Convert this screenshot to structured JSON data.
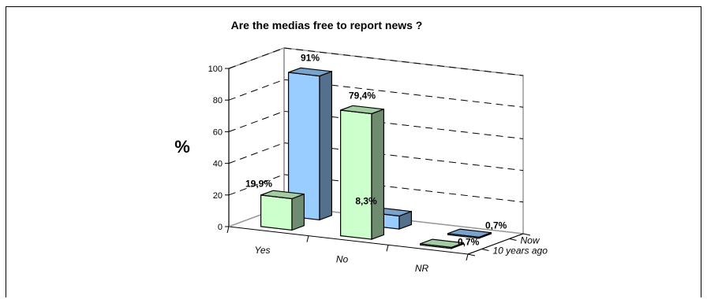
{
  "chart_data": {
    "type": "bar",
    "title": "Are the medias free to report news ?",
    "ylabel": "%",
    "xlabel": "",
    "ylim": [
      0,
      100
    ],
    "yticks": [
      "0",
      "20",
      "40",
      "60",
      "80",
      "100"
    ],
    "categories": [
      "Yes",
      "No",
      "NR"
    ],
    "series": [
      {
        "name": "10 years ago",
        "values": [
          19.9,
          79.4,
          0.7
        ],
        "labels": [
          "19,9%",
          "79,4%",
          "0,7%"
        ],
        "color": "#ccffcc"
      },
      {
        "name": "Now",
        "values": [
          91,
          8.3,
          0.7
        ],
        "labels": [
          "91%",
          "8,3%",
          "0,7%"
        ],
        "color": "#99ccff"
      }
    ],
    "grid": "dashed",
    "projection": "3d"
  }
}
